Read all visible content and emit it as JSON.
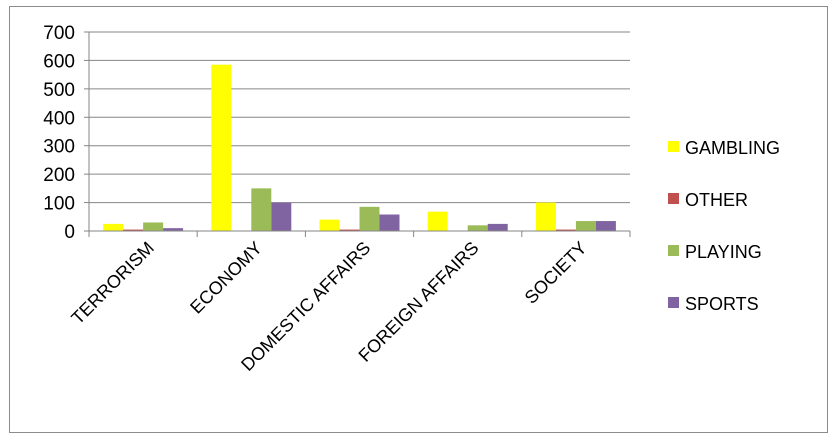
{
  "chart_data": {
    "type": "bar",
    "categories": [
      "TERRORISM",
      "ECONOMY",
      "DOMESTIC AFFAIRS",
      "FOREIGN AFFAIRS",
      "SOCIETY"
    ],
    "series": [
      {
        "name": "GAMBLING",
        "color": "#ffff00",
        "values": [
          25,
          585,
          40,
          68,
          100
        ]
      },
      {
        "name": "OTHER",
        "color": "#c0504d",
        "values": [
          5,
          0,
          5,
          0,
          5
        ]
      },
      {
        "name": "PLAYING",
        "color": "#9bbb59",
        "values": [
          30,
          150,
          85,
          20,
          35
        ]
      },
      {
        "name": "SPORTS",
        "color": "#8064a2",
        "values": [
          10,
          100,
          58,
          25,
          35
        ]
      }
    ],
    "ylim": [
      0,
      700
    ],
    "yticks": [
      "0",
      "100",
      "200",
      "300",
      "400",
      "500",
      "600",
      "700"
    ],
    "grid": true,
    "legend_position": "right"
  }
}
